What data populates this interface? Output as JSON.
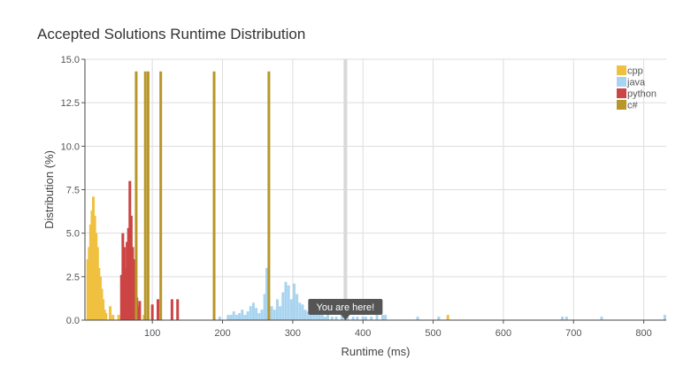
{
  "chart_data": {
    "type": "bar",
    "title": "Accepted Solutions Runtime Distribution",
    "xlabel": "Runtime (ms)",
    "ylabel": "Distribution (%)",
    "xlim": [
      4,
      832
    ],
    "ylim": [
      0,
      15
    ],
    "xticks": [
      100,
      200,
      300,
      400,
      500,
      600,
      700,
      800
    ],
    "yticks": [
      "0.0",
      "2.5",
      "5.0",
      "7.5",
      "10.0",
      "12.5",
      "15.0"
    ],
    "grid": true,
    "legend_position": "top-right",
    "bar_width": 3,
    "series": [
      {
        "name": "cpp",
        "color": "#f0c040",
        "points": [
          [
            8,
            3.5
          ],
          [
            10,
            4.2
          ],
          [
            12,
            5.5
          ],
          [
            14,
            6.3
          ],
          [
            16,
            7.1
          ],
          [
            18,
            6.0
          ],
          [
            20,
            5.0
          ],
          [
            22,
            4.2
          ],
          [
            24,
            3.0
          ],
          [
            26,
            2.5
          ],
          [
            28,
            1.8
          ],
          [
            30,
            1.2
          ],
          [
            32,
            0.6
          ],
          [
            34,
            0.4
          ],
          [
            40,
            0.8
          ],
          [
            44,
            0.3
          ],
          [
            52,
            0.3
          ],
          [
            64,
            0.2
          ],
          [
            88,
            0.3
          ],
          [
            521,
            0.3
          ]
        ]
      },
      {
        "name": "java",
        "color": "#a8d4f0",
        "points": [
          [
            196,
            0.2
          ],
          [
            208,
            0.3
          ],
          [
            212,
            0.3
          ],
          [
            216,
            0.5
          ],
          [
            220,
            0.3
          ],
          [
            224,
            0.4
          ],
          [
            228,
            0.6
          ],
          [
            232,
            0.3
          ],
          [
            236,
            0.5
          ],
          [
            240,
            0.8
          ],
          [
            244,
            1.0
          ],
          [
            248,
            0.7
          ],
          [
            252,
            0.4
          ],
          [
            256,
            0.6
          ],
          [
            260,
            1.5
          ],
          [
            263,
            3.0
          ],
          [
            266,
            1.2
          ],
          [
            270,
            0.8
          ],
          [
            274,
            0.6
          ],
          [
            278,
            1.2
          ],
          [
            282,
            0.8
          ],
          [
            286,
            1.6
          ],
          [
            290,
            2.2
          ],
          [
            294,
            2.0
          ],
          [
            298,
            1.2
          ],
          [
            302,
            2.1
          ],
          [
            306,
            1.5
          ],
          [
            310,
            1.0
          ],
          [
            314,
            0.9
          ],
          [
            318,
            0.6
          ],
          [
            322,
            0.5
          ],
          [
            326,
            0.5
          ],
          [
            330,
            0.4
          ],
          [
            334,
            0.3
          ],
          [
            338,
            0.6
          ],
          [
            342,
            0.3
          ],
          [
            346,
            0.2
          ],
          [
            350,
            0.4
          ],
          [
            356,
            0.2
          ],
          [
            362,
            0.2
          ],
          [
            370,
            0.3
          ],
          [
            378,
            0.2
          ],
          [
            386,
            0.2
          ],
          [
            392,
            0.2
          ],
          [
            400,
            0.2
          ],
          [
            404,
            0.2
          ],
          [
            412,
            0.2
          ],
          [
            420,
            0.3
          ],
          [
            428,
            0.3
          ],
          [
            432,
            0.3
          ],
          [
            478,
            0.2
          ],
          [
            508,
            0.2
          ],
          [
            684,
            0.2
          ],
          [
            690,
            0.2
          ],
          [
            740,
            0.2
          ],
          [
            830,
            0.3
          ]
        ]
      },
      {
        "name": "python",
        "color": "#cc4444",
        "points": [
          [
            56,
            2.6
          ],
          [
            58,
            5.0
          ],
          [
            60,
            4.2
          ],
          [
            62,
            3.0
          ],
          [
            64,
            4.5
          ],
          [
            66,
            5.3
          ],
          [
            68,
            8.0
          ],
          [
            70,
            6.0
          ],
          [
            72,
            4.2
          ],
          [
            74,
            3.5
          ],
          [
            76,
            2.6
          ],
          [
            78,
            1.3
          ],
          [
            80,
            0.8
          ],
          [
            82,
            1.1
          ],
          [
            100,
            0.9
          ],
          [
            108,
            1.2
          ],
          [
            128,
            1.2
          ],
          [
            136,
            1.2
          ]
        ]
      },
      {
        "name": "c#",
        "color": "#b8962a",
        "points": [
          [
            77,
            14.3
          ],
          [
            90,
            14.3
          ],
          [
            94,
            14.3
          ],
          [
            112,
            14.3
          ],
          [
            188,
            14.3
          ],
          [
            266,
            14.3
          ]
        ]
      }
    ],
    "annotation": {
      "text": "You are here!",
      "x": 375
    }
  }
}
